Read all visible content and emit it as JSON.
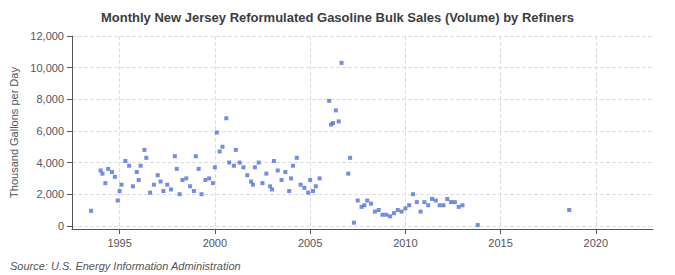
{
  "chart_data": {
    "type": "scatter",
    "title": "Monthly New Jersey Reformulated Gasoline Bulk Sales (Volume) by Refiners",
    "ylabel": "Thousand Gallons per Day",
    "annotation": "Source: U.S. Energy Information Administration",
    "marker": "square",
    "grid": true,
    "xlim": [
      1992.5,
      2023.0
    ],
    "xticks": [
      1995,
      2000,
      2005,
      2010,
      2015,
      2020
    ],
    "ylim": [
      -200,
      12000
    ],
    "yticks": [
      0,
      {
        "value": 2000,
        "label": "2,000"
      },
      {
        "value": 4000,
        "label": "4,000"
      },
      {
        "value": 6000,
        "label": "6,000"
      },
      {
        "value": 8000,
        "label": "8,000"
      },
      {
        "value": 10000,
        "label": "10,000"
      },
      {
        "value": 12000,
        "label": "12,000"
      }
    ],
    "x": [
      1993.5,
      1994.0,
      1994.1,
      1994.25,
      1994.4,
      1994.6,
      1994.75,
      1994.9,
      1995.0,
      1995.1,
      1995.3,
      1995.5,
      1995.7,
      1995.9,
      1996.0,
      1996.1,
      1996.3,
      1996.4,
      1996.6,
      1996.8,
      1997.0,
      1997.15,
      1997.3,
      1997.5,
      1997.7,
      1997.9,
      1998.0,
      1998.15,
      1998.3,
      1998.5,
      1998.7,
      1998.9,
      1999.0,
      1999.15,
      1999.3,
      1999.5,
      1999.7,
      1999.9,
      2000.0,
      2000.1,
      2000.25,
      2000.4,
      2000.6,
      2000.75,
      2001.0,
      2001.1,
      2001.3,
      2001.5,
      2001.7,
      2001.9,
      2002.0,
      2002.1,
      2002.3,
      2002.5,
      2002.7,
      2002.9,
      2003.0,
      2003.1,
      2003.3,
      2003.5,
      2003.7,
      2003.9,
      2004.0,
      2004.1,
      2004.3,
      2004.5,
      2004.7,
      2004.9,
      2005.0,
      2005.15,
      2005.3,
      2005.5,
      2006.0,
      2006.1,
      2006.2,
      2006.35,
      2006.5,
      2006.65,
      2007.0,
      2007.1,
      2007.3,
      2007.5,
      2007.7,
      2007.85,
      2008.0,
      2008.2,
      2008.4,
      2008.6,
      2008.8,
      2009.0,
      2009.2,
      2009.4,
      2009.6,
      2009.8,
      2010.0,
      2010.2,
      2010.4,
      2010.6,
      2010.8,
      2011.0,
      2011.2,
      2011.4,
      2011.6,
      2011.8,
      2012.0,
      2012.2,
      2012.4,
      2012.6,
      2012.8,
      2013.0,
      2013.8,
      2018.6
    ],
    "values": [
      950,
      3500,
      3300,
      2700,
      3600,
      3400,
      3100,
      1600,
      2200,
      2600,
      4100,
      3800,
      2500,
      3400,
      2900,
      3800,
      4800,
      4300,
      2100,
      2600,
      3200,
      2800,
      2200,
      2600,
      2300,
      4400,
      3600,
      2000,
      2900,
      3000,
      2500,
      2200,
      4400,
      3600,
      2000,
      2900,
      3000,
      2700,
      3700,
      5900,
      4700,
      5000,
      6800,
      4000,
      3800,
      4800,
      4000,
      3700,
      3200,
      2800,
      2600,
      3700,
      4000,
      2700,
      3300,
      2500,
      2300,
      4100,
      3500,
      2900,
      3400,
      2200,
      3000,
      3800,
      4300,
      2600,
      2400,
      2100,
      2900,
      2200,
      2500,
      3000,
      7900,
      6400,
      6500,
      7300,
      6600,
      10300,
      3300,
      4300,
      200,
      1600,
      1200,
      1300,
      1600,
      1400,
      900,
      1000,
      700,
      700,
      600,
      800,
      1000,
      900,
      1100,
      1300,
      2000,
      1500,
      900,
      1500,
      1300,
      1700,
      1600,
      1300,
      1300,
      1700,
      1500,
      1500,
      1200,
      1300,
      50,
      1000
    ]
  }
}
